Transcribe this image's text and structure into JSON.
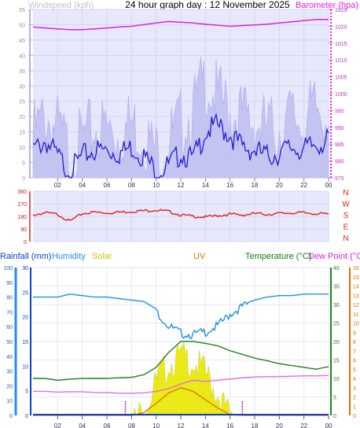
{
  "title": "24 hour graph day : 12 November 2025",
  "chart_data": [
    {
      "type": "line",
      "panel": "wind-barometer",
      "x_ticks": [
        "02",
        "04",
        "06",
        "08",
        "10",
        "12",
        "14",
        "16",
        "18",
        "20",
        "22",
        "00"
      ],
      "left_axis": {
        "label": "Windspeed (kph)",
        "ticks": [
          0,
          5,
          10,
          15,
          20,
          25,
          30,
          35,
          40,
          45,
          50,
          55
        ],
        "range": [
          0,
          55
        ]
      },
      "right_axis": {
        "label": "Barometer (hpa)",
        "ticks": [
          975,
          980,
          985,
          990,
          995,
          1000,
          1005,
          1010,
          1015,
          1020,
          1025
        ],
        "range": [
          975,
          1025
        ]
      },
      "series": [
        {
          "name": "Barometer (hpa)",
          "axis": "right",
          "color": "#e020e0",
          "values": [
            1019.8,
            1019.5,
            1019.2,
            1019.0,
            1019.0,
            1019.2,
            1019.5,
            1019.8,
            1020.0,
            1020.5,
            1021.0,
            1021.4,
            1021.2,
            1021.0,
            1020.6,
            1020.3,
            1020.0,
            1020.2,
            1020.4,
            1020.6,
            1021.0,
            1021.3,
            1021.7,
            1022.0,
            1022.0
          ]
        },
        {
          "name": "Wind speed",
          "axis": "left",
          "color": "#2020c8",
          "values": [
            11,
            14,
            9,
            4,
            9,
            11,
            11,
            10,
            12,
            9,
            4,
            6,
            10,
            8,
            17,
            19,
            16,
            12,
            11,
            9,
            10,
            12,
            11,
            13,
            14
          ]
        },
        {
          "name": "Wind gust",
          "axis": "left",
          "color": "#b8b8f0",
          "values": [
            20,
            26,
            22,
            14,
            18,
            22,
            22,
            20,
            24,
            20,
            14,
            18,
            24,
            28,
            38,
            32,
            28,
            26,
            24,
            22,
            22,
            26,
            24,
            28,
            28
          ]
        }
      ],
      "colors": {
        "grid": "#dcdcff",
        "panel_bg": "#e8e8fc",
        "axis": "#c8c8ff"
      }
    },
    {
      "type": "line",
      "panel": "wind-direction",
      "left_axis": {
        "ticks": [
          0,
          90,
          180,
          270,
          360
        ],
        "range": [
          0,
          360
        ]
      },
      "right_labels": [
        "N",
        "W",
        "S",
        "E",
        "N"
      ],
      "series": [
        {
          "name": "Wind direction",
          "color": "#e02020",
          "values": [
            195,
            210,
            200,
            150,
            205,
            215,
            210,
            215,
            220,
            225,
            230,
            220,
            195,
            185,
            180,
            190,
            200,
            195,
            205,
            200,
            205,
            210,
            210,
            205,
            200
          ]
        }
      ]
    },
    {
      "type": "area",
      "panel": "weather-multi",
      "legend": [
        "Rainfall (mm)",
        "Humidity",
        "Solar",
        "UV",
        "Temperature (°C)",
        "Dew Point (°C)"
      ],
      "legend_colors": [
        "#1040c8",
        "#2090e0",
        "#c8c800",
        "#e07000",
        "#108010",
        "#e020e0"
      ],
      "axes": {
        "humidity": {
          "ticks": [
            0,
            10,
            20,
            30,
            40,
            50,
            60,
            70,
            80,
            90,
            100
          ],
          "range": [
            0,
            100
          ]
        },
        "rainfall": {
          "ticks": [
            0,
            5,
            10,
            15,
            20,
            25,
            30
          ],
          "range": [
            0,
            30
          ]
        },
        "temperature": {
          "ticks": [
            0,
            5,
            10,
            15,
            20,
            25,
            30,
            35,
            40
          ],
          "range": [
            0,
            40
          ]
        },
        "uv": {
          "ticks": [
            0,
            1,
            2,
            3,
            4,
            5,
            6,
            7,
            8,
            9,
            10,
            11,
            12,
            13,
            14,
            15,
            16
          ],
          "range": [
            0,
            16
          ]
        }
      },
      "sunrise_hour": 7.5,
      "sunset_hour": 17.0,
      "series": [
        {
          "name": "Humidity",
          "color": "#2090e0",
          "values": [
            80,
            80,
            80,
            82,
            81,
            80,
            80,
            79,
            78,
            77,
            72,
            62,
            57,
            56,
            58,
            62,
            70,
            75,
            78,
            80,
            81,
            81,
            82,
            82,
            82
          ]
        },
        {
          "name": "Temperature (°C)",
          "color": "#208020",
          "values": [
            10,
            10,
            9.5,
            9.8,
            10,
            10,
            10,
            10.2,
            10.3,
            11,
            13,
            17,
            20,
            20,
            19.5,
            18.8,
            17.5,
            16.5,
            15.5,
            14.8,
            14,
            13.5,
            13,
            12.5,
            13.2
          ]
        },
        {
          "name": "Dew Point (°C)",
          "color": "#e070e0",
          "values": [
            6.5,
            6.5,
            6.3,
            6.4,
            6.4,
            6.2,
            6.2,
            6.0,
            6.0,
            6.1,
            6.5,
            7.2,
            8.5,
            9.5,
            9.2,
            9.5,
            9.8,
            10.2,
            10.4,
            10.5,
            10.5,
            10.6,
            10.7,
            10.7,
            10.8
          ]
        },
        {
          "name": "Solar",
          "color": "#e0e000",
          "values": [
            0,
            0,
            0,
            0,
            0,
            0,
            0,
            0,
            0.1,
            1.5,
            4.5,
            6.5,
            7.2,
            6.8,
            5.5,
            3.2,
            0.6,
            0,
            0,
            0,
            0,
            0,
            0,
            0,
            0
          ]
        },
        {
          "name": "UV",
          "color": "#e07000",
          "values": [
            0,
            0,
            0,
            0,
            0,
            0,
            0,
            0,
            0,
            0.3,
            1.3,
            2.4,
            3.0,
            2.6,
            1.7,
            0.8,
            0.1,
            0,
            0,
            0,
            0,
            0,
            0,
            0,
            0
          ]
        },
        {
          "name": "Rainfall (mm)",
          "color": "#1040c8",
          "values": [
            0,
            0,
            0,
            0,
            0,
            0,
            0,
            0,
            0,
            0,
            0,
            0,
            0,
            0,
            0,
            0,
            0,
            0,
            0,
            0,
            0,
            0,
            0,
            0,
            0
          ]
        }
      ]
    }
  ]
}
